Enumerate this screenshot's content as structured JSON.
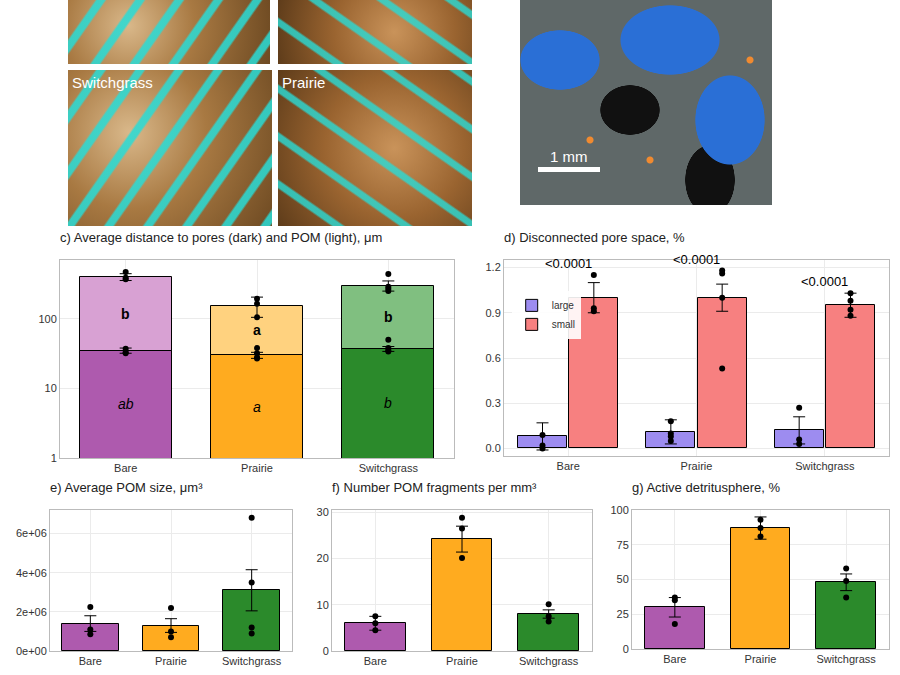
{
  "image_panels": [
    {
      "label": "Switchgrass"
    },
    {
      "label": "Prairie"
    }
  ],
  "scale_bar": "1 mm",
  "chart_data": [
    {
      "type": "bar",
      "title": "c) Average distance to pores (dark) and POM (light), μm",
      "categories": [
        "Bare",
        "Prairie",
        "Switchgrass"
      ],
      "log": "y",
      "ylim": [
        1,
        700
      ],
      "yticks": [
        1,
        10,
        100
      ],
      "grid": true,
      "series": [
        {
          "colors": [
            "#d8a1d3",
            "#ffd27f",
            "#80bf80"
          ],
          "values": [
            400,
            155,
            300
          ],
          "errors": [
            45,
            50,
            50
          ],
          "points": [
            [
              470,
              390,
              370
            ],
            [
              195,
              165,
              105
            ],
            [
              440,
              290,
              270,
              250
            ]
          ],
          "group_letters": [
            "b",
            "a",
            "b"
          ]
        },
        {
          "colors": [
            "#ae5aae",
            "#ffab1f",
            "#2b8a2b"
          ],
          "values": [
            35,
            30,
            37
          ],
          "errors": [
            3,
            3,
            3
          ],
          "points": [
            [
              37,
              33,
              32
            ],
            [
              38,
              32,
              28,
              27
            ],
            [
              50,
              38,
              35,
              34
            ]
          ],
          "group_letters": [
            "ab",
            "a",
            "b"
          ]
        }
      ]
    },
    {
      "type": "bar",
      "title": "d) Disconnected pore space, %",
      "categories": [
        "Bare",
        "Prairie",
        "Switchgrass"
      ],
      "ylim": [
        -0.05,
        1.25
      ],
      "yticks": [
        {
          "value": 0,
          "label": "0.0"
        },
        0.3,
        0.6,
        0.9,
        1.2
      ],
      "grid": true,
      "legend": "left",
      "series": [
        {
          "name": "large",
          "color": "#9d8cf0",
          "values": [
            0.08,
            0.11,
            0.12
          ],
          "errors": [
            0.09,
            0.08,
            0.09
          ],
          "points": [
            [
              0.09,
              0.02,
              0.0
            ],
            [
              0.18,
              0.1,
              0.08,
              0.05
            ],
            [
              0.27,
              0.06,
              0.03
            ]
          ]
        },
        {
          "name": "small",
          "color": "#f78080",
          "values": [
            1.0,
            1.0,
            0.95
          ],
          "errors": [
            0.1,
            0.09,
            0.08
          ],
          "points": [
            [
              1.15,
              0.93,
              0.91
            ],
            [
              1.18,
              1.16,
              1.0,
              0.53
            ],
            [
              1.03,
              0.98,
              0.92,
              0.88
            ]
          ]
        }
      ],
      "annotations": [
        {
          "category": "Bare",
          "text": "<0.0001"
        },
        {
          "category": "Prairie",
          "text": "<0.0001"
        },
        {
          "category": "Switchgrass",
          "text": "<0.0001"
        }
      ]
    },
    {
      "type": "bar",
      "title": "e) Average POM size, μm³",
      "categories": [
        "Bare",
        "Prairie",
        "Switchgrass"
      ],
      "ylim": [
        0,
        7200000
      ],
      "yticks": [
        {
          "value": 0,
          "label": "0e+00"
        },
        {
          "value": 2000000,
          "label": "2e+06"
        },
        {
          "value": 4000000,
          "label": "4e+06"
        },
        {
          "value": 6000000,
          "label": "6e+06"
        }
      ],
      "grid": true,
      "colors": [
        "#ae5aae",
        "#ffab1f",
        "#2b8a2b"
      ],
      "values": [
        1400000,
        1300000,
        3100000
      ],
      "errors": [
        400000,
        350000,
        1050000
      ],
      "points": [
        [
          2250000,
          1100000,
          850000
        ],
        [
          2200000,
          1000000,
          700000
        ],
        [
          6800000,
          3500000,
          1200000,
          900000
        ]
      ]
    },
    {
      "type": "bar",
      "title": "f) Number POM fragments per mm³",
      "categories": [
        "Bare",
        "Prairie",
        "Switchgrass"
      ],
      "ylim": [
        0,
        30.5
      ],
      "yticks": [
        0,
        10,
        20,
        30
      ],
      "grid": true,
      "colors": [
        "#ae5aae",
        "#ffab1f",
        "#2b8a2b"
      ],
      "values": [
        6,
        24.2,
        8
      ],
      "errors": [
        1.5,
        2.8,
        0.9
      ],
      "points": [
        [
          7.5,
          6,
          4.5
        ],
        [
          28.8,
          26.5,
          20.1
        ],
        [
          10.1,
          7.5,
          6.4
        ]
      ]
    },
    {
      "type": "bar",
      "title": "g) Active detritusphere, %",
      "categories": [
        "Bare",
        "Prairie",
        "Switchgrass"
      ],
      "ylim": [
        0,
        100
      ],
      "yticks": [
        0,
        25,
        50,
        75,
        100
      ],
      "grid": true,
      "colors": [
        "#ae5aae",
        "#ffab1f",
        "#2b8a2b"
      ],
      "values": [
        30,
        87,
        48
      ],
      "errors": [
        7,
        8,
        6
      ],
      "points": [
        [
          37,
          35,
          18
        ],
        [
          93,
          87,
          81
        ],
        [
          58,
          49,
          37
        ]
      ]
    }
  ]
}
